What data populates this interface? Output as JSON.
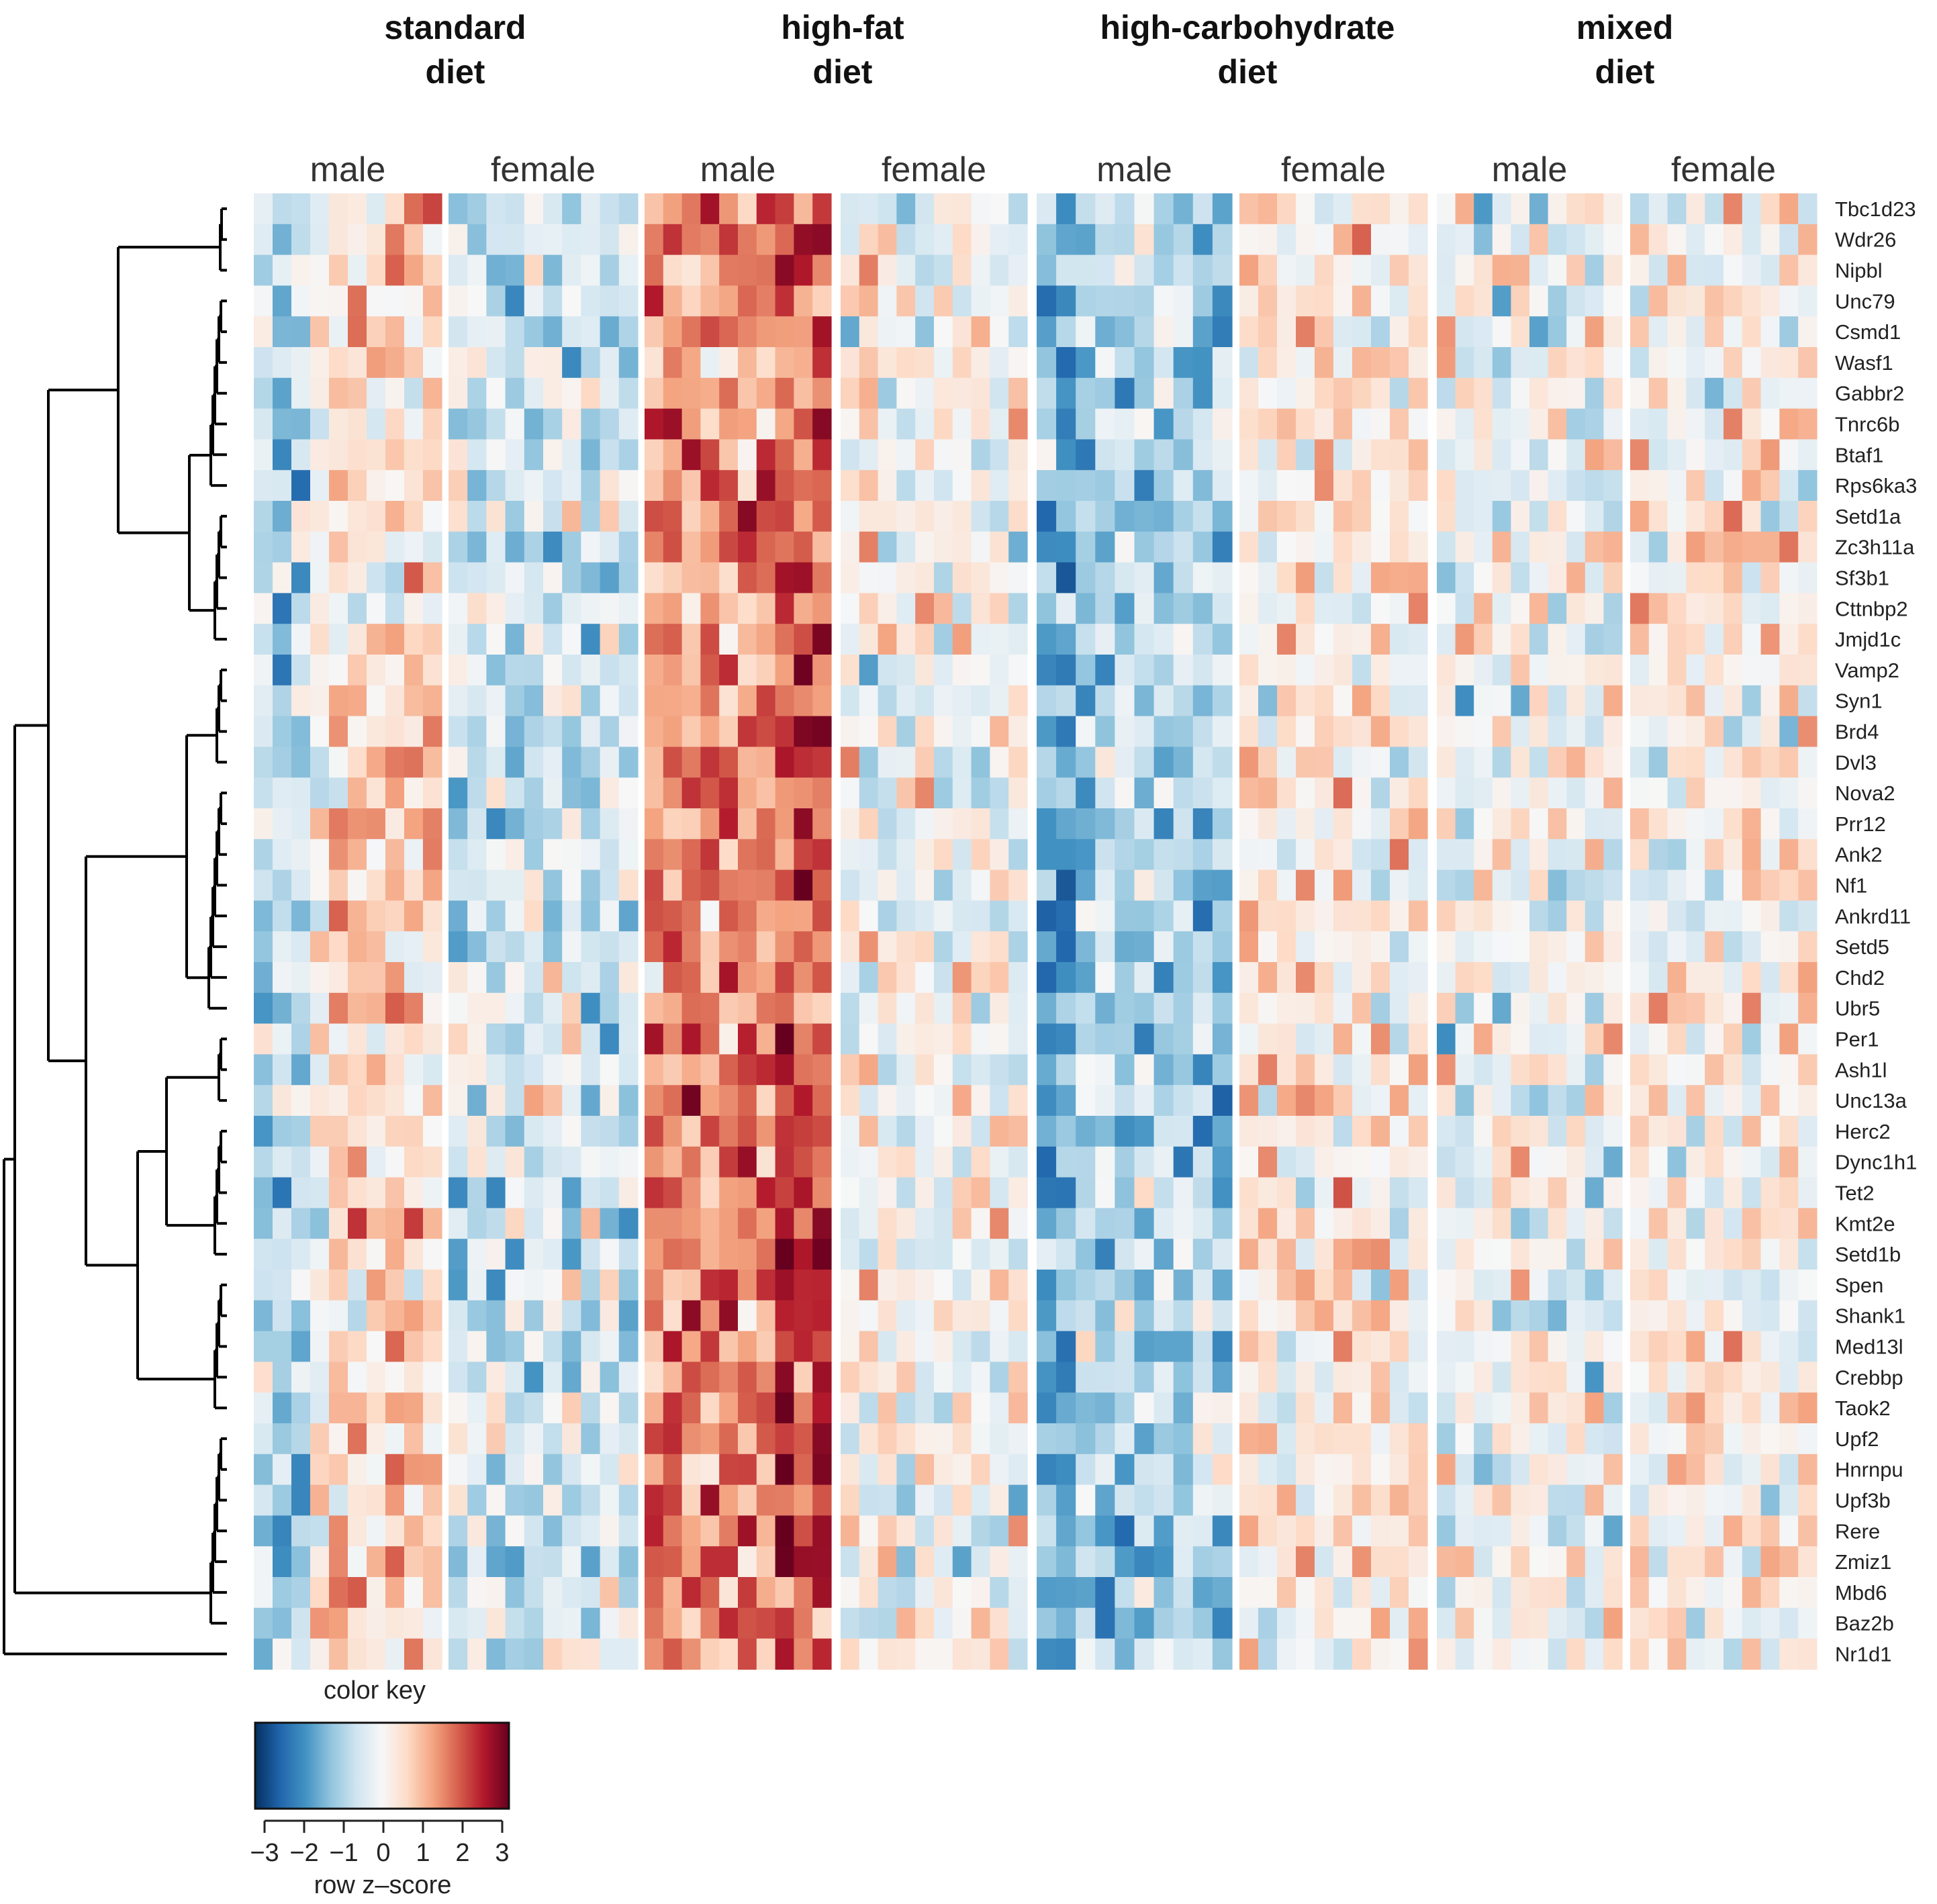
{
  "chart_data": {
    "type": "heatmap",
    "title": "",
    "diet_groups": [
      {
        "name": "standard diet",
        "lines": [
          "standard",
          "diet"
        ],
        "sexes": [
          "male",
          "female"
        ],
        "columns_per_sex": [
          10,
          10
        ]
      },
      {
        "name": "high-fat diet",
        "lines": [
          "high-fat",
          "diet"
        ],
        "sexes": [
          "male",
          "female"
        ],
        "columns_per_sex": [
          10,
          10
        ]
      },
      {
        "name": "high-carbohydrate diet",
        "lines": [
          "high-carbohydrate",
          "diet"
        ],
        "sexes": [
          "male",
          "female"
        ],
        "columns_per_sex": [
          10,
          10
        ]
      },
      {
        "name": "mixed diet",
        "lines": [
          "mixed",
          "diet"
        ],
        "sexes": [
          "male",
          "female"
        ],
        "columns_per_sex": [
          10,
          10
        ]
      }
    ],
    "genes": [
      "Tbc1d23",
      "Wdr26",
      "Nipbl",
      "Unc79",
      "Csmd1",
      "Wasf1",
      "Gabbr2",
      "Tnrc6b",
      "Btaf1",
      "Rps6ka3",
      "Setd1a",
      "Zc3h11a",
      "Sf3b1",
      "Cttnbp2",
      "Jmjd1c",
      "Vamp2",
      "Syn1",
      "Brd4",
      "Dvl3",
      "Nova2",
      "Prr12",
      "Ank2",
      "Nf1",
      "Ankrd11",
      "Setd5",
      "Chd2",
      "Ubr5",
      "Per1",
      "Ash1l",
      "Unc13a",
      "Herc2",
      "Dync1h1",
      "Tet2",
      "Kmt2e",
      "Setd1b",
      "Spen",
      "Shank1",
      "Med13l",
      "Crebbp",
      "Taok2",
      "Upf2",
      "Hnrnpu",
      "Upf3b",
      "Rere",
      "Zmiz1",
      "Mbd6",
      "Baz2b",
      "Nr1d1"
    ],
    "group_mean_zscore": [
      {
        "group": "standard diet / male",
        "mean": 0.0
      },
      {
        "group": "standard diet / female",
        "mean": -0.5
      },
      {
        "group": "high-fat diet / male",
        "mean": 1.4
      },
      {
        "group": "high-fat diet / female",
        "mean": 0.0
      },
      {
        "group": "high-carbohydrate diet / male",
        "mean": -0.9
      },
      {
        "group": "high-carbohydrate diet / female",
        "mean": 0.3
      },
      {
        "group": "mixed diet / male",
        "mean": -0.1
      },
      {
        "group": "mixed diet / female",
        "mean": 0.2
      }
    ],
    "color_key": {
      "title": "color key",
      "xlabel": "row z–score",
      "range": [
        -3,
        3
      ],
      "ticks": [
        -3,
        -2,
        -1,
        0,
        1,
        2,
        3
      ],
      "tick_labels": [
        "−3",
        "−2",
        "−1",
        "0",
        "1",
        "2",
        "3"
      ],
      "colors": [
        "#053061",
        "#2166ac",
        "#4393c3",
        "#92c5de",
        "#d1e5f0",
        "#f7f7f7",
        "#fddbc7",
        "#f4a582",
        "#d6604d",
        "#b2182b",
        "#67001f"
      ]
    },
    "dendrogram": "row clustering tree (left side)"
  }
}
